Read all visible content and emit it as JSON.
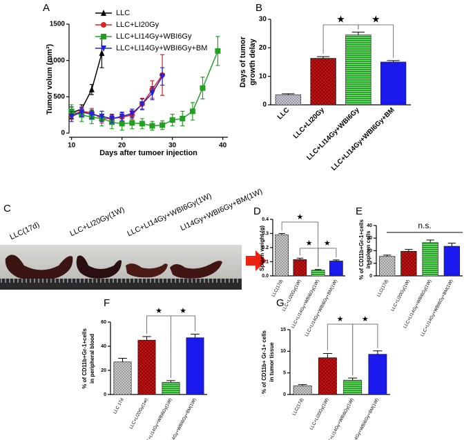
{
  "chart_data": [
    {
      "type": "line",
      "panel": "A",
      "xlabel": "Days after tumoer injection",
      "ylabel": "Tumor volum (mm³)",
      "xlim": [
        9.5,
        41
      ],
      "xticks": [
        10,
        20,
        30,
        40
      ],
      "ylim": [
        0,
        1500
      ],
      "yticks": [
        0,
        500,
        1000,
        1500
      ],
      "series": [
        {
          "name": "LLC",
          "color": "#000000",
          "marker": "triangle",
          "x": [
            10,
            12,
            14,
            16
          ],
          "values": [
            280,
            330,
            600,
            1100
          ],
          "errors": [
            80,
            60,
            70,
            200
          ]
        },
        {
          "name": "LLC+LI20Gy",
          "color": "#dd2222",
          "marker": "circle",
          "x": [
            10,
            12,
            14,
            16,
            18,
            20,
            22,
            24,
            26,
            28
          ],
          "values": [
            250,
            300,
            280,
            200,
            200,
            220,
            250,
            400,
            600,
            800
          ],
          "errors": [
            60,
            60,
            60,
            60,
            50,
            60,
            60,
            80,
            120,
            280
          ]
        },
        {
          "name": "LLC+LI14Gy+WBI6Gy",
          "color": "#22a022",
          "marker": "square",
          "x": [
            10,
            12,
            14,
            16,
            18,
            20,
            22,
            24,
            26,
            28,
            30,
            32,
            34,
            36,
            39
          ],
          "values": [
            300,
            250,
            220,
            200,
            150,
            130,
            140,
            130,
            100,
            110,
            180,
            200,
            300,
            620,
            1130
          ],
          "errors": [
            90,
            90,
            90,
            100,
            90,
            90,
            80,
            70,
            60,
            60,
            80,
            100,
            120,
            150,
            200
          ]
        },
        {
          "name": "LLC+LI14Gy+WBI6Gy+BM",
          "color": "#2222dd",
          "marker": "invtriangle",
          "x": [
            10,
            12,
            14,
            16,
            18,
            20,
            22,
            24,
            26,
            28
          ],
          "values": [
            230,
            290,
            260,
            230,
            200,
            230,
            270,
            400,
            550,
            780
          ],
          "errors": [
            70,
            60,
            60,
            70,
            60,
            60,
            60,
            70,
            90,
            120
          ]
        }
      ]
    },
    {
      "type": "bar",
      "panel": "B",
      "ylabel": [
        "Days of tumor",
        "growth delay"
      ],
      "categories": [
        "LLC",
        "LLC+LI20Gy",
        "LLC+LI14Gy+WBI6Gy",
        "LLC+LI14Gy+WBI6Gy+BM"
      ],
      "values": [
        3.5,
        16.3,
        24.5,
        15
      ],
      "errors": [
        0.4,
        0.6,
        1,
        0.5
      ],
      "colors": [
        "#9a9aaa",
        "#cc1111",
        "#22aa22",
        "#1a1aee"
      ],
      "ylim": [
        0,
        30
      ],
      "yticks": [
        0,
        10,
        20,
        30
      ],
      "annotations": [
        "★",
        "★"
      ]
    },
    {
      "type": "bar",
      "panel": "D",
      "ylabel": [
        "Spleen weight (g)"
      ],
      "categories": [
        "LLC(17d)",
        "LLC+LI20Gy(1W)",
        "LLC+LI14Gy+WBI6Gy(1W)",
        "LLC+LI14Gy+WBI6Gy+BM(1W)"
      ],
      "values": [
        0.29,
        0.115,
        0.04,
        0.105
      ],
      "errors": [
        0.01,
        0.01,
        0.005,
        0.008
      ],
      "colors": [
        "#9a9a9a",
        "#cc1111",
        "#22aa22",
        "#1a1aee"
      ],
      "ylim": [
        0,
        0.4
      ],
      "yticks": [
        {
          "value": 0,
          "label": "0.0"
        },
        0.1,
        0.2,
        0.3,
        0.4
      ],
      "annotations": [
        "★",
        "★",
        "★"
      ]
    },
    {
      "type": "bar",
      "panel": "E",
      "ylabel": [
        "% of CD11b+Gr-1+cells",
        "in spleen cells"
      ],
      "categories": [
        "LLC(17d)",
        "LLC+LI20Gy(1W)",
        "LLC+LI14Gy+WBI6Gy(1W)",
        "LLC+LI14Gy+WBI6Gy+BM(1W)"
      ],
      "values": [
        15.5,
        19.5,
        26.5,
        23.5
      ],
      "errors": [
        1,
        1.5,
        2,
        2.5
      ],
      "colors": [
        "#9a9a9a",
        "#cc1111",
        "#22aa22",
        "#1a1aee"
      ],
      "ylim": [
        0,
        40
      ],
      "yticks": [
        0,
        10,
        20,
        30,
        40
      ],
      "annotations": [
        "n.s."
      ]
    },
    {
      "type": "bar",
      "panel": "F",
      "ylabel": [
        "% of CD11b+Gr-1+cells",
        "in peripheral blood"
      ],
      "categories": [
        "LLC 17d",
        "LLC+LI20Gy(1w)",
        "LLC+LI14Gy+WBI6Gy(1W)",
        "LLC+LI14Gy+WBI6Gy+BM(1W)"
      ],
      "values": [
        27,
        45,
        10,
        47
      ],
      "errors": [
        3,
        3,
        1.5,
        3
      ],
      "colors": [
        "#9a9a9a",
        "#cc1111",
        "#22aa22",
        "#1a1aee"
      ],
      "ylim": [
        0,
        60
      ],
      "yticks": [
        0,
        20,
        40,
        60
      ],
      "annotations": [
        "★",
        "★"
      ]
    },
    {
      "type": "bar",
      "panel": "G",
      "ylabel": [
        "% of CD11b+ Gr-1+ cells",
        "in tumor tissue"
      ],
      "categories": [
        "LLC(17d)",
        "LLC+LI20Gy(1W)",
        "LLC+LI14Gy+WBI6Gy(1W)",
        "LLC+LI14Gy+WBI6Gy+BM(1W)"
      ],
      "values": [
        2,
        8.5,
        3.3,
        9.3
      ],
      "errors": [
        0.3,
        1,
        0.5,
        0.8
      ],
      "colors": [
        "#9a9a9a",
        "#cc1111",
        "#22aa22",
        "#1a1aee"
      ],
      "ylim": [
        0,
        15
      ],
      "yticks": [
        0,
        5,
        10,
        15
      ],
      "annotations": [
        "★",
        "★"
      ]
    }
  ],
  "panel_c": {
    "panel": "C",
    "labels": [
      "LLC(17d)",
      "LLC+LI20Gy(1W)",
      "LLC+LI14Gy+WBI6Gy(1W)",
      "LI14Gy+WBI6Gy+BM(1W)"
    ]
  }
}
